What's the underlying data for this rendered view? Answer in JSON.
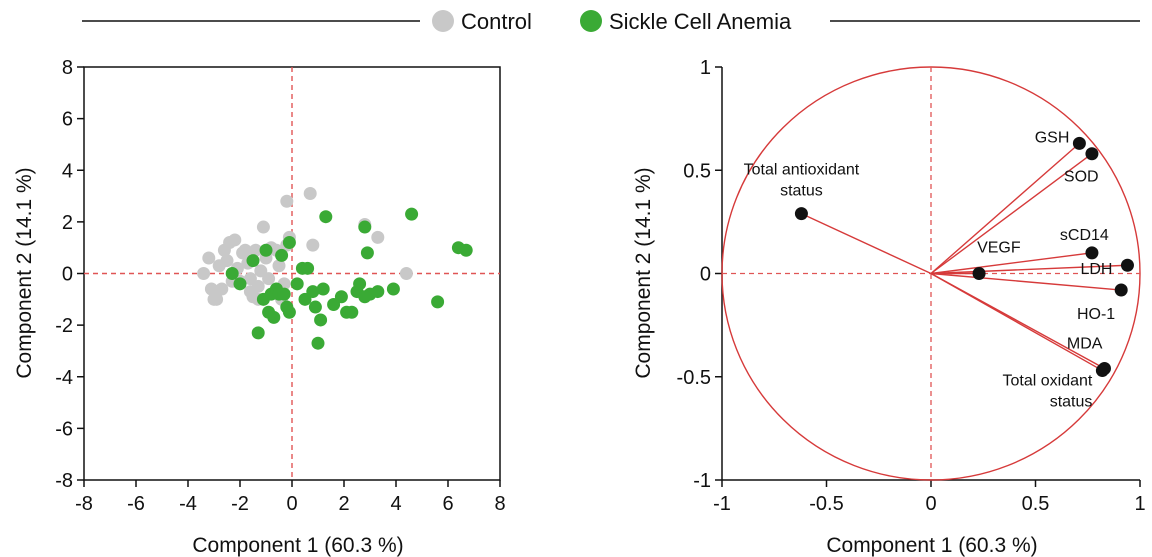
{
  "legend": {
    "items": [
      {
        "label": "Control",
        "color": "#c8c8c8"
      },
      {
        "label": "Sickle Cell Anemia",
        "color": "#3aaa35"
      }
    ]
  },
  "colors": {
    "control": "#c8c8c8",
    "sca": "#3aaa35",
    "loadings": "#d63a3a",
    "reference_line": "#e05555",
    "variable_point": "#111111"
  },
  "chart_data": [
    {
      "type": "scatter",
      "name_hint": "scores",
      "xlabel": "Component 1  (60.3 %)",
      "ylabel": "Component 2  (14.1 %)",
      "xlim": [
        -8,
        8
      ],
      "ylim": [
        -8,
        8
      ],
      "xticks": [
        "-8",
        "-6",
        "-4",
        "-2",
        "0",
        "2",
        "4",
        "6",
        "8"
      ],
      "yticks": [
        "8",
        "6",
        "4",
        "2",
        "0",
        "-2",
        "-4",
        "-6",
        "-8"
      ],
      "reference_lines": {
        "x": 0,
        "y": 0
      },
      "series": [
        {
          "name": "Control",
          "points": [
            [
              -3.4,
              0.0
            ],
            [
              -3.2,
              0.6
            ],
            [
              -3.0,
              -1.0
            ],
            [
              -3.1,
              -0.6
            ],
            [
              -2.9,
              -1.0
            ],
            [
              -2.8,
              0.3
            ],
            [
              -2.6,
              0.9
            ],
            [
              -2.5,
              0.5
            ],
            [
              -2.4,
              1.2
            ],
            [
              -2.3,
              -0.3
            ],
            [
              -2.2,
              1.3
            ],
            [
              -2.1,
              0.2
            ],
            [
              -2.0,
              -0.3
            ],
            [
              -1.9,
              0.8
            ],
            [
              -1.8,
              0.9
            ],
            [
              -1.7,
              0.4
            ],
            [
              -1.6,
              -0.2
            ],
            [
              -1.5,
              -0.9
            ],
            [
              -1.4,
              0.9
            ],
            [
              -1.3,
              -0.5
            ],
            [
              -1.2,
              0.1
            ],
            [
              -1.1,
              1.8
            ],
            [
              -1.0,
              0.6
            ],
            [
              -0.9,
              -0.2
            ],
            [
              -0.8,
              1.0
            ],
            [
              -0.6,
              0.9
            ],
            [
              -0.4,
              -1.0
            ],
            [
              -0.3,
              -0.4
            ],
            [
              -0.2,
              1.1
            ],
            [
              -0.2,
              2.8
            ],
            [
              -0.1,
              1.4
            ],
            [
              -1.3,
              -1.0
            ],
            [
              -1.6,
              -0.7
            ],
            [
              -2.7,
              -0.6
            ],
            [
              0.7,
              3.1
            ],
            [
              2.8,
              1.9
            ],
            [
              3.3,
              1.4
            ],
            [
              4.4,
              0.0
            ],
            [
              0.8,
              1.1
            ],
            [
              -0.5,
              0.3
            ]
          ]
        },
        {
          "name": "Sickle Cell Anemia",
          "points": [
            [
              -2.3,
              0.0
            ],
            [
              -2.0,
              -0.4
            ],
            [
              -1.5,
              0.5
            ],
            [
              -1.3,
              -2.3
            ],
            [
              -1.1,
              -1.0
            ],
            [
              -1.0,
              0.9
            ],
            [
              -0.9,
              -1.5
            ],
            [
              -0.8,
              -0.8
            ],
            [
              -0.7,
              -1.7
            ],
            [
              -0.6,
              -0.6
            ],
            [
              -0.5,
              -0.8
            ],
            [
              -0.4,
              0.7
            ],
            [
              -0.3,
              -0.8
            ],
            [
              -0.2,
              -1.3
            ],
            [
              -0.1,
              -1.5
            ],
            [
              -0.1,
              1.2
            ],
            [
              0.2,
              -0.4
            ],
            [
              0.4,
              0.2
            ],
            [
              0.5,
              -1.0
            ],
            [
              0.6,
              0.2
            ],
            [
              0.8,
              -0.7
            ],
            [
              0.9,
              -1.3
            ],
            [
              1.0,
              -2.7
            ],
            [
              1.1,
              -1.8
            ],
            [
              1.3,
              2.2
            ],
            [
              1.6,
              -1.2
            ],
            [
              1.9,
              -0.9
            ],
            [
              2.1,
              -1.5
            ],
            [
              2.3,
              -1.5
            ],
            [
              2.5,
              -0.7
            ],
            [
              2.6,
              -0.4
            ],
            [
              2.8,
              1.8
            ],
            [
              2.9,
              0.8
            ],
            [
              3.0,
              -0.8
            ],
            [
              3.3,
              -0.7
            ],
            [
              3.9,
              -0.6
            ],
            [
              4.6,
              2.3
            ],
            [
              5.6,
              -1.1
            ],
            [
              6.4,
              1.0
            ],
            [
              6.7,
              0.9
            ],
            [
              1.2,
              -0.6
            ],
            [
              2.8,
              -0.9
            ]
          ]
        }
      ]
    },
    {
      "type": "scatter",
      "name_hint": "loadings",
      "xlabel": "Component 1  (60.3 %)",
      "ylabel": "Component 2  (14.1 %)",
      "xlim": [
        -1,
        1
      ],
      "ylim": [
        -1,
        1
      ],
      "xticks": [
        "-1",
        "-0.5",
        "0",
        "0.5",
        "1"
      ],
      "yticks": [
        "1",
        "0.5",
        "0",
        "-0.5",
        "-1"
      ],
      "reference_lines": {
        "x": 0,
        "y": 0
      },
      "unit_circle": true,
      "variables": [
        {
          "label": "GSH",
          "x": 0.71,
          "y": 0.63
        },
        {
          "label": "SOD",
          "x": 0.77,
          "y": 0.58
        },
        {
          "label": "Total antioxidant status",
          "lines": [
            "Total antioxidant",
            "status"
          ],
          "x": -0.62,
          "y": 0.29
        },
        {
          "label": "sCD14",
          "x": 0.77,
          "y": 0.1
        },
        {
          "label": "VEGF",
          "x": 0.23,
          "y": 0.0
        },
        {
          "label": "LDH",
          "x": 0.94,
          "y": 0.04
        },
        {
          "label": "HO-1",
          "x": 0.91,
          "y": -0.08
        },
        {
          "label": "MDA",
          "x": 0.83,
          "y": -0.46
        },
        {
          "label": "Total oxidant status",
          "lines": [
            "Total oxidant",
            "status"
          ],
          "x": 0.82,
          "y": -0.47
        }
      ]
    }
  ]
}
